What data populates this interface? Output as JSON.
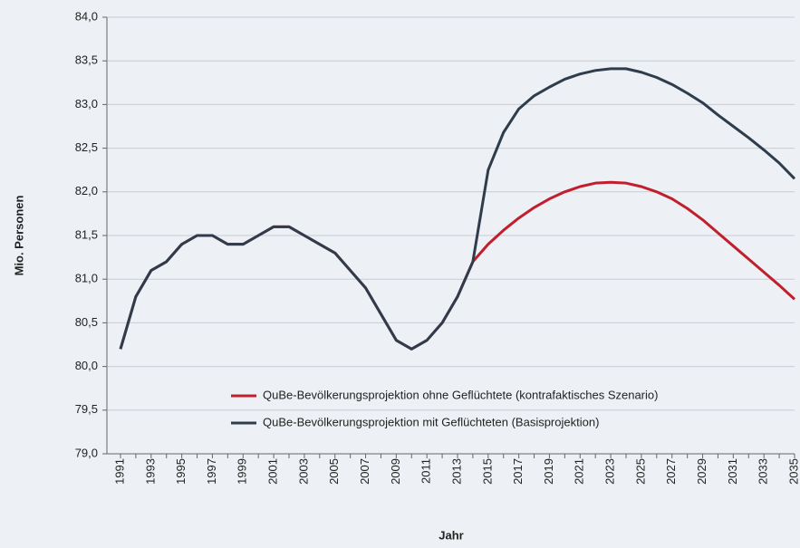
{
  "chart_data": {
    "type": "line",
    "x_label": "Jahr",
    "y_label": "Mio. Personen",
    "categories": [
      "1991",
      null,
      "1993",
      null,
      "1995",
      null,
      "1997",
      null,
      "1999",
      null,
      "2001",
      null,
      "2003",
      null,
      "2005",
      null,
      "2007",
      null,
      "2009",
      null,
      "2011",
      null,
      "2013",
      null,
      "2015",
      null,
      "2017",
      null,
      "2019",
      null,
      "2021",
      null,
      "2023",
      null,
      "2025",
      null,
      "2027",
      null,
      "2029",
      null,
      "2031",
      null,
      "2033",
      null,
      "2035"
    ],
    "series": [
      {
        "name": "QuBe-Bevölkerungsprojektion ohne Geflüchtete (kontrafaktisches Szenario)",
        "color": "#c0202e",
        "values": [
          80.2,
          80.8,
          81.1,
          81.2,
          81.4,
          81.5,
          81.5,
          81.4,
          81.4,
          81.5,
          81.6,
          81.6,
          81.5,
          81.4,
          81.3,
          81.1,
          80.9,
          80.6,
          80.3,
          80.2,
          80.3,
          80.5,
          80.8,
          81.2,
          81.4,
          81.56,
          81.7,
          81.82,
          81.92,
          82.0,
          82.06,
          82.1,
          82.11,
          82.1,
          82.06,
          82.0,
          81.92,
          81.81,
          81.68,
          81.53,
          81.38,
          81.23,
          81.08,
          80.93,
          80.77
        ]
      },
      {
        "name": "QuBe-Bevölkerungsprojektion mit Geflüchteten (Basisprojektion)",
        "color": "#2e3c4b",
        "values": [
          80.2,
          80.8,
          81.1,
          81.2,
          81.4,
          81.5,
          81.5,
          81.4,
          81.4,
          81.5,
          81.6,
          81.6,
          81.5,
          81.4,
          81.3,
          81.1,
          80.9,
          80.6,
          80.3,
          80.2,
          80.3,
          80.5,
          80.8,
          81.2,
          82.25,
          82.68,
          82.95,
          83.1,
          83.2,
          83.29,
          83.35,
          83.39,
          83.41,
          83.41,
          83.37,
          83.31,
          83.23,
          83.13,
          83.02,
          82.88,
          82.75,
          82.62,
          82.48,
          82.33,
          82.15
        ]
      }
    ],
    "ylim": [
      79,
      84
    ],
    "yticks": [
      {
        "value": 79,
        "label": "79,0"
      },
      {
        "value": 79.5,
        "label": "79,5"
      },
      {
        "value": 80,
        "label": "80,0"
      },
      {
        "value": 80.5,
        "label": "80,5"
      },
      {
        "value": 81,
        "label": "81,0"
      },
      {
        "value": 81.5,
        "label": "81,5"
      },
      {
        "value": 82,
        "label": "82,0"
      },
      {
        "value": 82.5,
        "label": "82,5"
      },
      {
        "value": 83,
        "label": "83,0"
      },
      {
        "value": 83.5,
        "label": "83,5"
      },
      {
        "value": 84,
        "label": "84,0"
      }
    ],
    "grid": true,
    "legend": "lower right"
  }
}
